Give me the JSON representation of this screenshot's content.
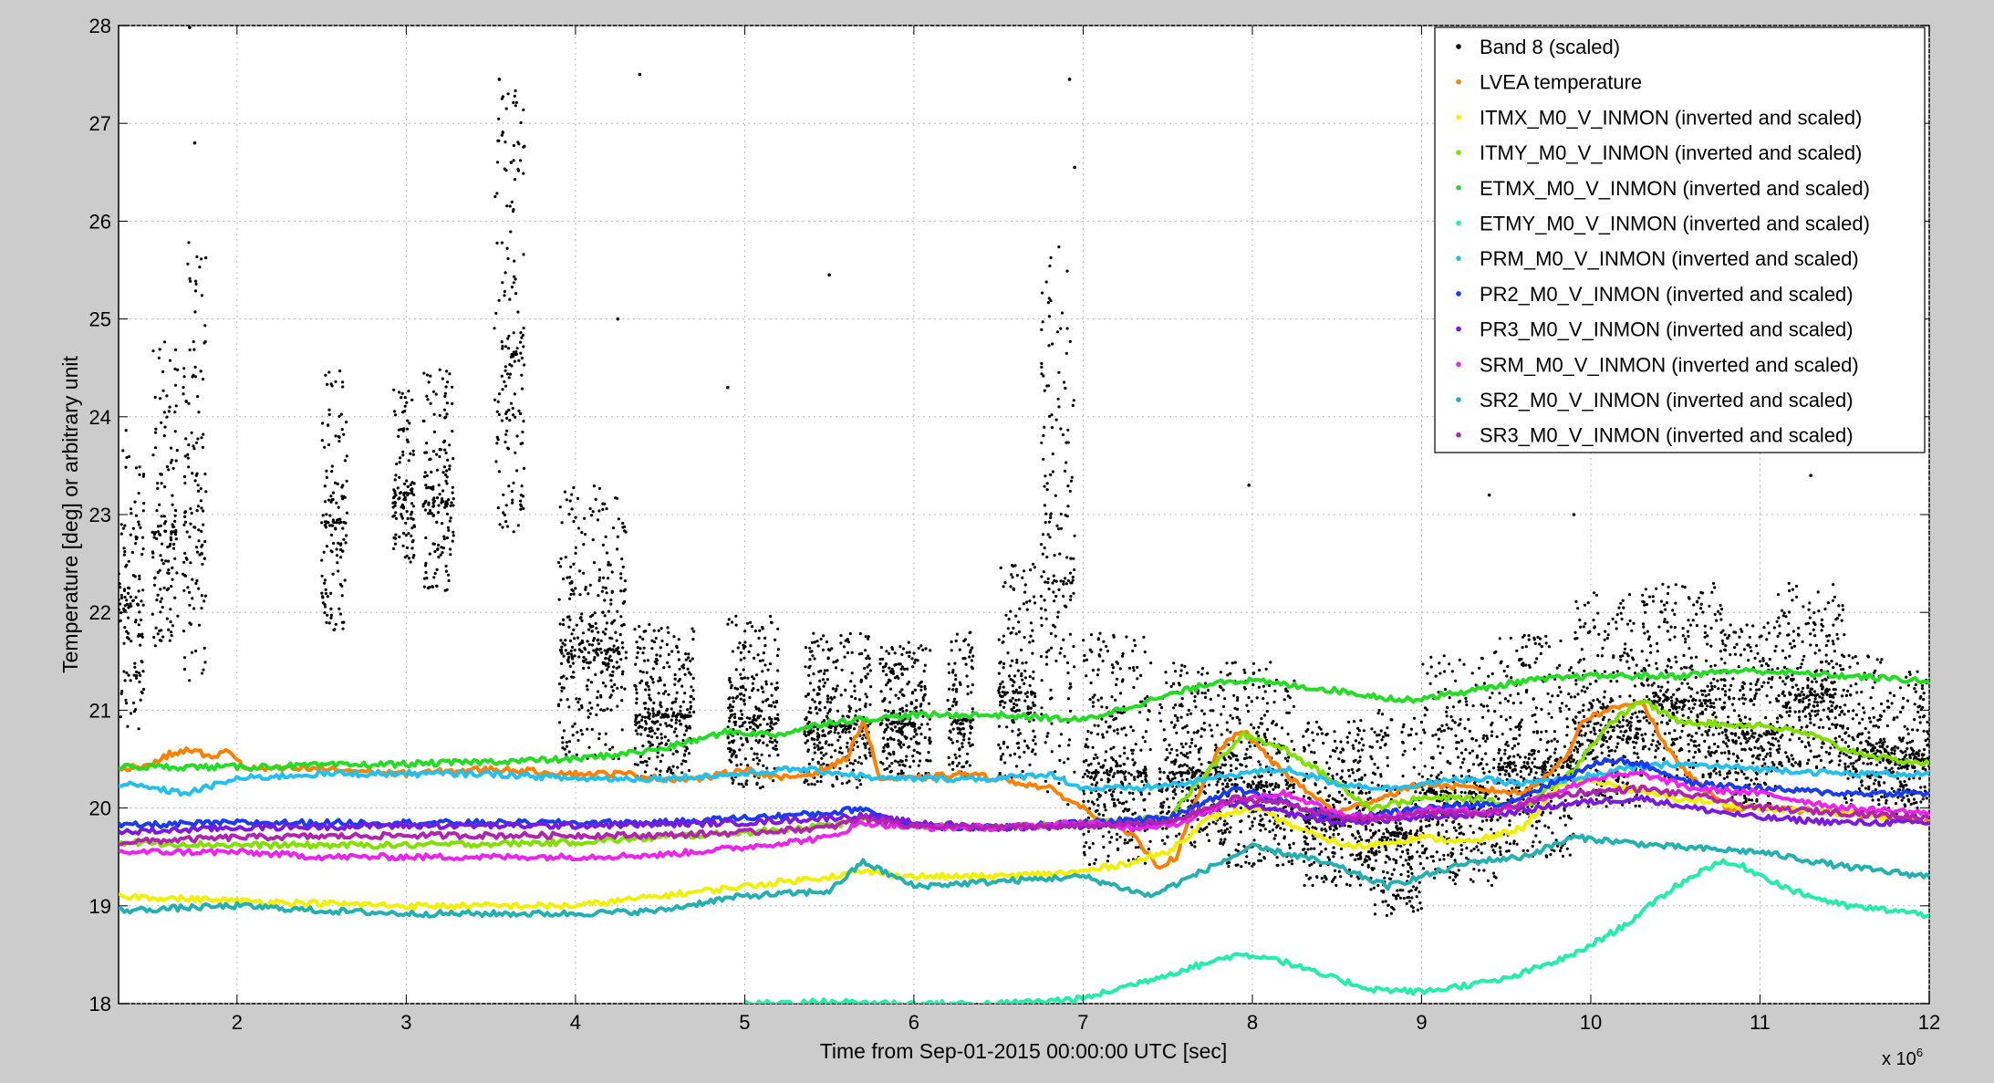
{
  "chart_data": {
    "type": "scatter",
    "title": "",
    "xlabel": "Time from Sep-01-2015 00:00:00 UTC [sec]",
    "ylabel": "Temperature [deg] or arbitrary unit",
    "x_exponent_label": "x 10",
    "x_exponent_power": "6",
    "xlim": [
      1.3,
      12
    ],
    "ylim": [
      18,
      28
    ],
    "xticks": [
      2,
      3,
      4,
      5,
      6,
      7,
      8,
      9,
      10,
      11,
      12
    ],
    "yticks": [
      18,
      19,
      20,
      21,
      22,
      23,
      24,
      25,
      26,
      27,
      28
    ],
    "xtick_labels": [
      "2",
      "3",
      "4",
      "5",
      "6",
      "7",
      "8",
      "9",
      "10",
      "11",
      "12"
    ],
    "ytick_labels": [
      "18",
      "19",
      "20",
      "21",
      "22",
      "23",
      "24",
      "25",
      "26",
      "27",
      "28"
    ],
    "grid": true,
    "legend_position": "top-right",
    "series": [
      {
        "name": "Band 8 (scaled)",
        "color": "#000000",
        "style": "dots",
        "clusters": [
          {
            "x": [
              1.3,
              1.45
            ],
            "y": [
              20.8,
              24.0
            ]
          },
          {
            "x": [
              1.5,
              1.65
            ],
            "y": [
              21.5,
              24.8
            ]
          },
          {
            "x": [
              1.68,
              1.82
            ],
            "y": [
              21.2,
              25.8
            ]
          },
          {
            "x": [
              2.5,
              2.65
            ],
            "y": [
              21.8,
              24.6
            ]
          },
          {
            "x": [
              2.92,
              3.05
            ],
            "y": [
              22.5,
              24.3
            ]
          },
          {
            "x": [
              3.1,
              3.28
            ],
            "y": [
              22.2,
              24.5
            ]
          },
          {
            "x": [
              3.52,
              3.7
            ],
            "y": [
              22.8,
              27.4
            ]
          },
          {
            "x": [
              3.9,
              4.3
            ],
            "y": [
              20.5,
              23.3
            ]
          },
          {
            "x": [
              4.35,
              4.7
            ],
            "y": [
              20.3,
              21.9
            ]
          },
          {
            "x": [
              4.9,
              5.2
            ],
            "y": [
              20.2,
              22.0
            ]
          },
          {
            "x": [
              5.35,
              5.75
            ],
            "y": [
              20.2,
              21.8
            ]
          },
          {
            "x": [
              5.8,
              6.1
            ],
            "y": [
              20.3,
              21.7
            ]
          },
          {
            "x": [
              6.2,
              6.35
            ],
            "y": [
              20.3,
              21.8
            ]
          },
          {
            "x": [
              6.5,
              6.72
            ],
            "y": [
              20.3,
              22.5
            ]
          },
          {
            "x": [
              6.75,
              6.95
            ],
            "y": [
              20.0,
              25.8
            ]
          },
          {
            "x": [
              7.0,
              7.4
            ],
            "y": [
              19.4,
              21.8
            ]
          },
          {
            "x": [
              7.45,
              7.85
            ],
            "y": [
              19.6,
              21.5
            ]
          },
          {
            "x": [
              7.85,
              8.25
            ],
            "y": [
              19.4,
              21.5
            ]
          },
          {
            "x": [
              8.3,
              8.7
            ],
            "y": [
              19.2,
              20.9
            ]
          },
          {
            "x": [
              8.7,
              9.0
            ],
            "y": [
              18.9,
              21.0
            ]
          },
          {
            "x": [
              9.0,
              9.45
            ],
            "y": [
              19.2,
              21.6
            ]
          },
          {
            "x": [
              9.45,
              9.9
            ],
            "y": [
              19.5,
              21.8
            ]
          },
          {
            "x": [
              9.9,
              10.3
            ],
            "y": [
              20.0,
              22.2
            ]
          },
          {
            "x": [
              10.3,
              10.8
            ],
            "y": [
              20.3,
              22.3
            ]
          },
          {
            "x": [
              10.8,
              11.1
            ],
            "y": [
              20.0,
              21.9
            ]
          },
          {
            "x": [
              11.1,
              11.5
            ],
            "y": [
              20.4,
              22.3
            ]
          },
          {
            "x": [
              11.5,
              11.75
            ],
            "y": [
              19.9,
              21.6
            ]
          },
          {
            "x": [
              11.75,
              12.0
            ],
            "y": [
              19.9,
              21.4
            ]
          }
        ],
        "outliers": [
          [
            1.72,
            27.98
          ],
          [
            1.75,
            26.8
          ],
          [
            3.55,
            27.45
          ],
          [
            4.38,
            27.5
          ],
          [
            6.92,
            27.45
          ],
          [
            6.95,
            26.55
          ],
          [
            3.62,
            26.6
          ],
          [
            5.5,
            25.45
          ],
          [
            4.9,
            24.3
          ],
          [
            4.25,
            25.0
          ],
          [
            7.98,
            23.3
          ],
          [
            9.4,
            23.2
          ],
          [
            11.3,
            23.4
          ],
          [
            9.9,
            23.0
          ]
        ]
      },
      {
        "name": "LVEA temperature",
        "color": "#ff8000",
        "style": "line",
        "x": [
          1.3,
          1.5,
          1.6,
          1.75,
          1.85,
          1.95,
          2.05,
          2.5,
          3.0,
          3.5,
          4.0,
          4.3,
          4.5,
          4.75,
          5.0,
          5.2,
          5.4,
          5.6,
          5.7,
          5.8,
          6.0,
          6.3,
          6.5,
          6.8,
          7.0,
          7.3,
          7.45,
          7.55,
          7.65,
          7.8,
          7.95,
          8.1,
          8.3,
          8.5,
          8.75,
          9.0,
          9.3,
          9.6,
          9.85,
          9.95,
          10.1,
          10.3,
          10.45,
          10.6,
          10.8,
          11.0,
          11.5,
          12.0
        ],
        "y": [
          20.4,
          20.45,
          20.55,
          20.6,
          20.5,
          20.6,
          20.4,
          20.4,
          20.35,
          20.4,
          20.35,
          20.35,
          20.3,
          20.3,
          20.4,
          20.3,
          20.35,
          20.5,
          20.9,
          20.3,
          20.3,
          20.35,
          20.3,
          20.2,
          20.0,
          19.7,
          19.4,
          19.5,
          20.0,
          20.6,
          20.8,
          20.5,
          20.2,
          19.95,
          20.1,
          20.25,
          20.2,
          20.15,
          20.5,
          20.9,
          21.0,
          21.1,
          20.6,
          20.3,
          20.0,
          20.0,
          19.95,
          19.85
        ]
      },
      {
        "name": "ITMX_M0_V_INMON (inverted and scaled)",
        "color": "#f0f000",
        "style": "line",
        "x": [
          1.3,
          2.0,
          3.0,
          4.0,
          4.5,
          5.0,
          5.5,
          5.7,
          6.0,
          6.5,
          7.0,
          7.3,
          7.5,
          7.75,
          8.0,
          8.2,
          8.4,
          8.6,
          8.8,
          9.0,
          9.3,
          9.6,
          9.8,
          10.0,
          10.2,
          10.5,
          11.0,
          11.5,
          12.0
        ],
        "y": [
          19.1,
          19.05,
          19.0,
          19.0,
          19.1,
          19.2,
          19.3,
          19.35,
          19.3,
          19.3,
          19.35,
          19.45,
          19.55,
          19.9,
          20.0,
          19.85,
          19.7,
          19.6,
          19.65,
          19.7,
          19.65,
          19.8,
          20.2,
          20.3,
          20.2,
          20.1,
          20.0,
          19.95,
          19.85
        ]
      },
      {
        "name": "ITMY_M0_V_INMON (inverted and scaled)",
        "color": "#80e000",
        "style": "line",
        "x": [
          1.3,
          2.0,
          3.0,
          4.0,
          4.5,
          5.0,
          5.5,
          5.8,
          6.0,
          6.5,
          7.0,
          7.5,
          7.75,
          7.95,
          8.2,
          8.5,
          8.7,
          9.0,
          9.3,
          9.6,
          9.9,
          10.1,
          10.3,
          10.5,
          10.8,
          11.0,
          11.3,
          11.5,
          11.75,
          12.0
        ],
        "y": [
          19.65,
          19.62,
          19.62,
          19.65,
          19.7,
          19.75,
          19.82,
          19.9,
          19.82,
          19.8,
          19.85,
          19.9,
          20.4,
          20.75,
          20.6,
          20.25,
          20.0,
          20.1,
          20.1,
          20.0,
          20.4,
          20.85,
          21.1,
          20.9,
          20.85,
          20.85,
          20.75,
          20.6,
          20.5,
          20.45
        ]
      },
      {
        "name": "ETMX_M0_V_INMON (inverted and scaled)",
        "color": "#22dd22",
        "style": "line",
        "x": [
          1.3,
          2.0,
          3.0,
          4.0,
          4.5,
          4.9,
          5.2,
          5.5,
          5.8,
          6.0,
          6.5,
          7.0,
          7.5,
          7.8,
          8.0,
          8.5,
          8.9,
          9.3,
          9.6,
          10.0,
          10.5,
          10.8,
          11.0,
          11.5,
          12.0
        ],
        "y": [
          20.42,
          20.42,
          20.45,
          20.5,
          20.6,
          20.78,
          20.75,
          20.88,
          20.92,
          20.95,
          20.95,
          20.9,
          21.15,
          21.3,
          21.3,
          21.2,
          21.1,
          21.2,
          21.3,
          21.35,
          21.35,
          21.4,
          21.4,
          21.35,
          21.3
        ]
      },
      {
        "name": "ETMY_M0_V_INMON (inverted and scaled)",
        "color": "#22eeaa",
        "style": "line",
        "x": [
          5.0,
          5.5,
          6.0,
          6.5,
          7.0,
          7.3,
          7.6,
          7.9,
          8.1,
          8.4,
          8.7,
          9.0,
          9.5,
          9.9,
          10.2,
          10.5,
          10.75,
          10.9,
          11.2,
          11.5,
          11.8,
          12.0
        ],
        "y": [
          18.0,
          18.02,
          18.0,
          18.0,
          18.05,
          18.2,
          18.35,
          18.5,
          18.48,
          18.3,
          18.15,
          18.12,
          18.25,
          18.5,
          18.8,
          19.2,
          19.45,
          19.4,
          19.15,
          19.0,
          18.95,
          18.9
        ]
      },
      {
        "name": "PRM_M0_V_INMON (inverted and scaled)",
        "color": "#22c0ee",
        "style": "line",
        "x": [
          1.3,
          1.7,
          2.0,
          2.5,
          3.0,
          3.5,
          4.0,
          4.3,
          4.5,
          5.0,
          5.3,
          5.6,
          5.8,
          6.0,
          6.5,
          6.8,
          7.0,
          7.3,
          7.6,
          7.9,
          8.2,
          8.5,
          8.8,
          9.0,
          9.3,
          9.6,
          9.9,
          10.2,
          10.5,
          11.0,
          11.5,
          12.0
        ],
        "y": [
          20.25,
          20.15,
          20.3,
          20.35,
          20.35,
          20.35,
          20.3,
          20.3,
          20.3,
          20.35,
          20.4,
          20.35,
          20.3,
          20.3,
          20.3,
          20.35,
          20.2,
          20.2,
          20.25,
          20.35,
          20.4,
          20.25,
          20.2,
          20.25,
          20.3,
          20.25,
          20.3,
          20.4,
          20.45,
          20.4,
          20.35,
          20.35
        ]
      },
      {
        "name": "PR2_M0_V_INMON (inverted and scaled)",
        "color": "#1a3cf0",
        "style": "line",
        "x": [
          1.3,
          2.0,
          3.0,
          4.0,
          4.5,
          5.0,
          5.5,
          5.7,
          5.9,
          6.2,
          6.5,
          7.0,
          7.5,
          7.9,
          8.2,
          8.5,
          8.8,
          9.0,
          9.5,
          9.9,
          10.1,
          10.3,
          10.6,
          11.0,
          11.5,
          12.0
        ],
        "y": [
          19.82,
          19.85,
          19.85,
          19.85,
          19.85,
          19.9,
          19.95,
          20.0,
          19.85,
          19.8,
          19.8,
          19.85,
          19.9,
          20.2,
          20.05,
          19.9,
          19.95,
          20.0,
          20.05,
          20.35,
          20.5,
          20.45,
          20.25,
          20.2,
          20.15,
          20.15
        ]
      },
      {
        "name": "PR3_M0_V_INMON (inverted and scaled)",
        "color": "#7a1ae0",
        "style": "line",
        "x": [
          1.3,
          2.0,
          3.0,
          4.0,
          5.0,
          5.7,
          6.0,
          6.5,
          7.0,
          7.5,
          7.9,
          8.2,
          8.5,
          9.0,
          9.5,
          9.9,
          10.3,
          10.6,
          11.0,
          11.5,
          12.0
        ],
        "y": [
          19.75,
          19.8,
          19.82,
          19.82,
          19.85,
          19.92,
          19.85,
          19.8,
          19.82,
          19.85,
          20.05,
          19.95,
          19.85,
          19.9,
          19.95,
          20.05,
          20.1,
          20.0,
          19.9,
          19.85,
          19.85
        ]
      },
      {
        "name": "SRM_M0_V_INMON (inverted and scaled)",
        "color": "#ee22ee",
        "style": "line",
        "x": [
          1.3,
          2.0,
          2.5,
          3.0,
          3.5,
          4.0,
          4.5,
          5.0,
          5.5,
          5.7,
          6.0,
          6.5,
          7.0,
          7.3,
          7.6,
          7.9,
          8.2,
          8.5,
          8.8,
          9.1,
          9.4,
          9.7,
          10.0,
          10.3,
          10.6,
          11.0,
          11.5,
          12.0
        ],
        "y": [
          19.55,
          19.55,
          19.5,
          19.5,
          19.5,
          19.5,
          19.52,
          19.6,
          19.7,
          19.85,
          19.8,
          19.8,
          19.85,
          19.8,
          19.85,
          20.1,
          20.15,
          19.95,
          19.9,
          20.0,
          19.95,
          20.1,
          20.3,
          20.35,
          20.2,
          20.15,
          20.0,
          19.95
        ]
      },
      {
        "name": "SR2_M0_V_INMON (inverted and scaled)",
        "color": "#22b0b0",
        "style": "line",
        "x": [
          1.3,
          1.7,
          2.0,
          2.5,
          3.0,
          3.5,
          4.0,
          4.5,
          4.8,
          5.0,
          5.5,
          5.7,
          6.0,
          6.5,
          7.0,
          7.4,
          7.7,
          8.0,
          8.3,
          8.5,
          8.8,
          9.0,
          9.3,
          9.6,
          9.9,
          10.2,
          10.5,
          11.0,
          11.5,
          12.0
        ],
        "y": [
          18.95,
          18.98,
          19.0,
          18.95,
          18.92,
          18.92,
          18.92,
          18.95,
          19.05,
          19.1,
          19.15,
          19.45,
          19.2,
          19.25,
          19.3,
          19.1,
          19.35,
          19.6,
          19.5,
          19.4,
          19.2,
          19.3,
          19.45,
          19.5,
          19.7,
          19.65,
          19.6,
          19.55,
          19.4,
          19.3
        ]
      },
      {
        "name": "SR3_M0_V_INMON (inverted and scaled)",
        "color": "#b024b0",
        "style": "line",
        "x": [
          1.3,
          2.0,
          3.0,
          4.0,
          4.5,
          5.0,
          5.5,
          5.7,
          6.0,
          6.5,
          7.0,
          7.5,
          7.9,
          8.2,
          8.5,
          8.8,
          9.0,
          9.4,
          9.7,
          9.9,
          10.3,
          10.7,
          11.0,
          11.5,
          12.0
        ],
        "y": [
          19.65,
          19.7,
          19.72,
          19.72,
          19.72,
          19.75,
          19.8,
          19.9,
          19.82,
          19.8,
          19.82,
          19.85,
          20.1,
          20.05,
          19.9,
          19.9,
          19.95,
          19.95,
          20.1,
          20.15,
          20.2,
          20.1,
          20.0,
          19.95,
          19.9
        ]
      }
    ]
  }
}
